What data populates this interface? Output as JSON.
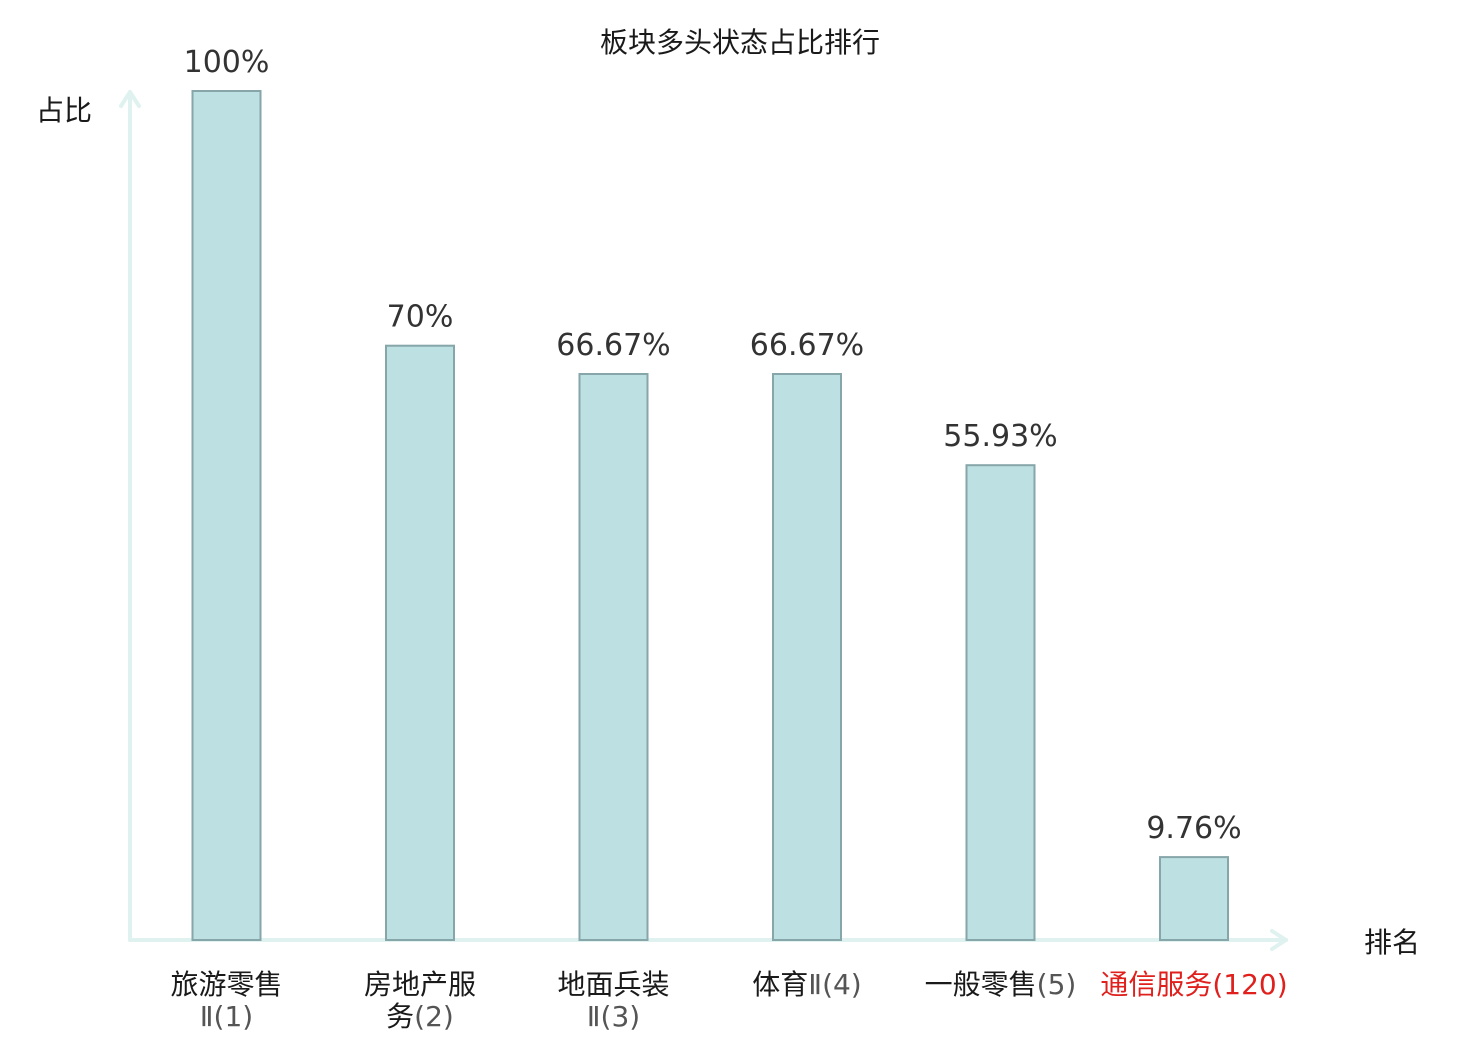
{
  "chart_data": {
    "type": "bar",
    "title": "板块多头状态占比排行",
    "ylabel": "占比",
    "xlabel": "排名",
    "ylim": [
      0,
      100
    ],
    "grid": false,
    "legend": "none",
    "categories": [
      {
        "lines": [
          {
            "name": "旅游零售",
            "rank": ""
          },
          {
            "name": "",
            "rank": "Ⅱ(1)"
          }
        ],
        "highlight": false
      },
      {
        "lines": [
          {
            "name": "房地产服",
            "rank": ""
          },
          {
            "name": "务",
            "rank": "(2)"
          }
        ],
        "highlight": false
      },
      {
        "lines": [
          {
            "name": "地面兵装",
            "rank": ""
          },
          {
            "name": "",
            "rank": "Ⅱ(3)"
          }
        ],
        "highlight": false
      },
      {
        "lines": [
          {
            "name": "体育",
            "rank": "Ⅱ(4)"
          }
        ],
        "highlight": false
      },
      {
        "lines": [
          {
            "name": "一般零售",
            "rank": "(5)"
          }
        ],
        "highlight": false
      },
      {
        "lines": [
          {
            "name": "通信服务",
            "rank": "(120)"
          }
        ],
        "highlight": true
      }
    ],
    "values": [
      100,
      70,
      66.67,
      66.67,
      55.93,
      9.76
    ],
    "value_labels": [
      "100%",
      "70%",
      "66.67%",
      "66.67%",
      "55.93%",
      "9.76%"
    ],
    "colors": {
      "bar_fill": "#bde0e3",
      "bar_stroke": "#86a6a9",
      "axis": "#dff2ef",
      "highlight_text": "#e0201d"
    }
  }
}
